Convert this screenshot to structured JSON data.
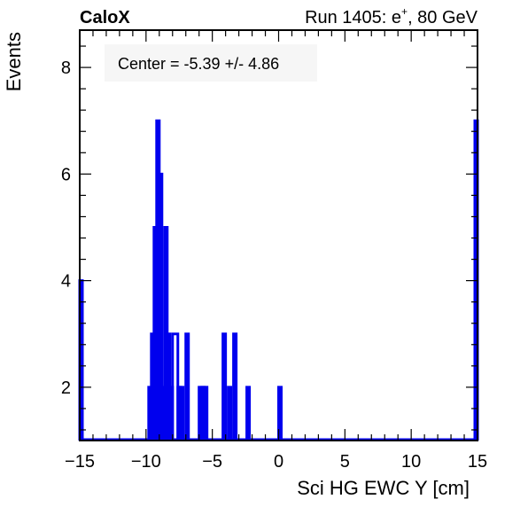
{
  "chart_data": {
    "type": "histogram",
    "experiment_label": "CaloX",
    "run_label_prefix": "Run 1405: e",
    "run_label_sup": "+",
    "run_label_suffix": ", 80 GeV",
    "stat_box_text": "Center = -5.39 +/- 4.86",
    "xlabel": "Sci HG EWC Y [cm]",
    "ylabel": "Events",
    "xlim": [
      -15,
      15
    ],
    "ylim": [
      1,
      8.7
    ],
    "x_ticks": [
      -15,
      -10,
      -5,
      0,
      5,
      10,
      15
    ],
    "x_tick_labels": [
      "−15",
      "−10",
      "−5",
      "0",
      "5",
      "10",
      "15"
    ],
    "y_ticks": [
      2,
      4,
      6,
      8
    ],
    "y_tick_labels": [
      "2",
      "4",
      "6",
      "8"
    ],
    "line_color": "#0000ee",
    "grid": false,
    "bins": [
      {
        "lo": -15.0,
        "hi": -14.8,
        "count": 4
      },
      {
        "lo": -9.8,
        "hi": -9.6,
        "count": 2
      },
      {
        "lo": -9.6,
        "hi": -9.4,
        "count": 3
      },
      {
        "lo": -9.4,
        "hi": -9.2,
        "count": 5
      },
      {
        "lo": -9.2,
        "hi": -9.0,
        "count": 7
      },
      {
        "lo": -9.0,
        "hi": -8.8,
        "count": 6
      },
      {
        "lo": -8.8,
        "hi": -8.6,
        "count": 2
      },
      {
        "lo": -8.6,
        "hi": -8.4,
        "count": 5
      },
      {
        "lo": -8.4,
        "hi": -8.2,
        "count": 3
      },
      {
        "lo": -8.2,
        "hi": -8.0,
        "count": 2
      },
      {
        "lo": -8.0,
        "hi": -7.6,
        "count": 3
      },
      {
        "lo": -7.6,
        "hi": -7.4,
        "count": 2
      },
      {
        "lo": -7.4,
        "hi": -7.2,
        "count": 2
      },
      {
        "lo": -7.0,
        "hi": -6.8,
        "count": 3
      },
      {
        "lo": -6.0,
        "hi": -5.8,
        "count": 2
      },
      {
        "lo": -5.8,
        "hi": -5.6,
        "count": 2
      },
      {
        "lo": -5.6,
        "hi": -5.4,
        "count": 2
      },
      {
        "lo": -4.2,
        "hi": -4.0,
        "count": 3
      },
      {
        "lo": -3.8,
        "hi": -3.6,
        "count": 2
      },
      {
        "lo": -3.4,
        "hi": -3.2,
        "count": 3
      },
      {
        "lo": -2.4,
        "hi": -2.2,
        "count": 2
      },
      {
        "lo": 0.0,
        "hi": 0.2,
        "count": 2
      },
      {
        "lo": 14.8,
        "hi": 15.0,
        "count": 7
      }
    ]
  }
}
